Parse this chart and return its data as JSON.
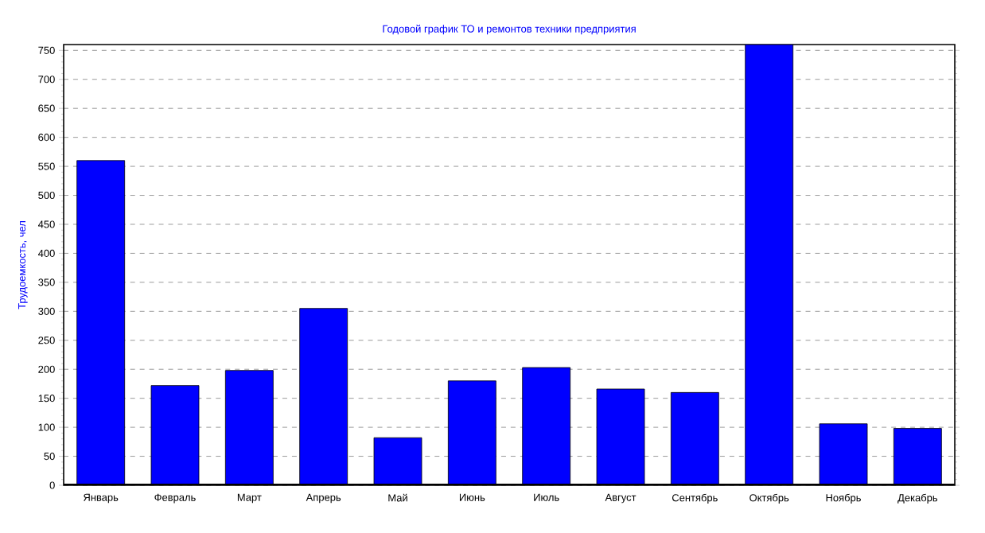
{
  "chart_data": {
    "type": "bar",
    "title": "Годовой график ТО и ремонтов техники предприятия",
    "ylabel": "Трудоемкость, чел",
    "categories": [
      "Январь",
      "Февраль",
      "Март",
      "Апрерь",
      "Май",
      "Июнь",
      "Июль",
      "Август",
      "Сентябрь",
      "Октябрь",
      "Ноябрь",
      "Декабрь"
    ],
    "values": [
      560,
      172,
      198,
      305,
      82,
      180,
      203,
      166,
      160,
      760,
      106,
      98
    ],
    "color": "#0000ff",
    "ylim": [
      0,
      760
    ],
    "yticks": [
      0,
      50,
      100,
      150,
      200,
      250,
      300,
      350,
      400,
      450,
      500,
      550,
      600,
      650,
      700,
      750
    ],
    "grid": "y"
  }
}
